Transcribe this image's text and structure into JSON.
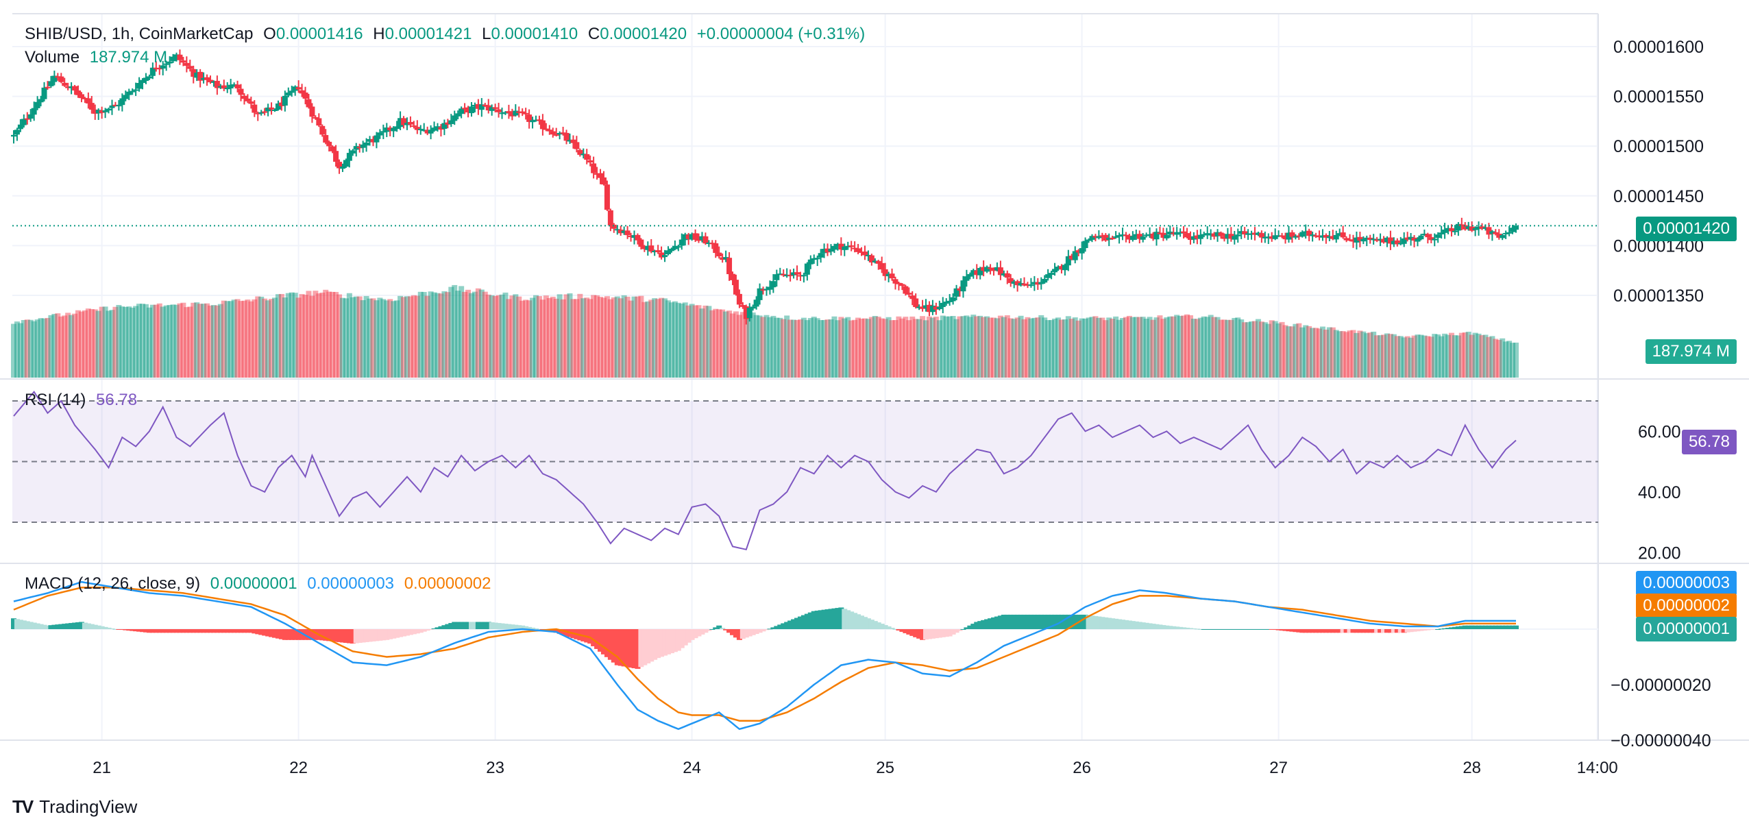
{
  "header": {
    "symbol": "SHIB/USD, 1h, CoinMarketCap",
    "o_label": "O",
    "o_value": "0.00001416",
    "h_label": "H",
    "h_value": "0.00001421",
    "l_label": "L",
    "l_value": "0.00001410",
    "c_label": "C",
    "c_value": "0.00001420",
    "change": "+0.00000004 (+0.31%)",
    "volume_label": "Volume",
    "volume_value": "187.974 M"
  },
  "rsi_legend": {
    "label": "RSI (14)",
    "value": "56.78"
  },
  "macd_legend": {
    "label": "MACD (12, 26, close, 9)",
    "hist": "0.00000001",
    "macd": "0.00000003",
    "signal": "0.00000002"
  },
  "tags": {
    "price": "0.00001420",
    "volume": "187.974 M",
    "rsi": "56.78",
    "macd": "0.00000003",
    "signal": "0.00000002",
    "hist": "0.00000001"
  },
  "branding": {
    "name": "TradingView"
  },
  "colors": {
    "up": "#089981",
    "down": "#f23645",
    "rsi": "#7e57c2",
    "macd": "#2196f3",
    "signal": "#f57c00"
  },
  "chart_data": [
    {
      "type": "candlestick",
      "title": "SHIB/USD, 1h, CoinMarketCap",
      "price_axis_ticks": [
        "0.00001600",
        "0.00001550",
        "0.00001500",
        "0.00001450",
        "0.00001400",
        "0.00001350"
      ],
      "price_ticks_numeric": [
        1600,
        1550,
        1500,
        1450,
        1400,
        1350
      ],
      "price_unit_note": "values ×1e-8 USD",
      "time_axis_ticks": [
        "21",
        "22",
        "23",
        "24",
        "25",
        "26",
        "27",
        "28",
        "14:00"
      ],
      "time_tick_bar_index": [
        26,
        84,
        142,
        200,
        257,
        315,
        373,
        430,
        467
      ],
      "anchors_close": [
        [
          0,
          1510
        ],
        [
          6,
          1540
        ],
        [
          12,
          1570
        ],
        [
          18,
          1555
        ],
        [
          24,
          1535
        ],
        [
          30,
          1540
        ],
        [
          36,
          1560
        ],
        [
          42,
          1580
        ],
        [
          48,
          1590
        ],
        [
          54,
          1570
        ],
        [
          60,
          1560
        ],
        [
          66,
          1560
        ],
        [
          72,
          1530
        ],
        [
          78,
          1540
        ],
        [
          84,
          1560
        ],
        [
          90,
          1520
        ],
        [
          96,
          1480
        ],
        [
          102,
          1500
        ],
        [
          108,
          1510
        ],
        [
          114,
          1525
        ],
        [
          120,
          1515
        ],
        [
          126,
          1520
        ],
        [
          132,
          1535
        ],
        [
          138,
          1540
        ],
        [
          144,
          1535
        ],
        [
          150,
          1530
        ],
        [
          156,
          1520
        ],
        [
          162,
          1510
        ],
        [
          168,
          1490
        ],
        [
          174,
          1460
        ],
        [
          176,
          1420
        ],
        [
          180,
          1415
        ],
        [
          186,
          1400
        ],
        [
          192,
          1390
        ],
        [
          198,
          1410
        ],
        [
          204,
          1405
        ],
        [
          210,
          1385
        ],
        [
          214,
          1340
        ],
        [
          216,
          1330
        ],
        [
          220,
          1355
        ],
        [
          226,
          1370
        ],
        [
          232,
          1370
        ],
        [
          238,
          1395
        ],
        [
          244,
          1400
        ],
        [
          250,
          1395
        ],
        [
          256,
          1375
        ],
        [
          262,
          1360
        ],
        [
          266,
          1340
        ],
        [
          270,
          1335
        ],
        [
          276,
          1345
        ],
        [
          282,
          1370
        ],
        [
          288,
          1380
        ],
        [
          292,
          1370
        ],
        [
          296,
          1360
        ],
        [
          300,
          1360
        ],
        [
          306,
          1370
        ],
        [
          312,
          1390
        ],
        [
          318,
          1410
        ],
        [
          324,
          1405
        ],
        [
          330,
          1410
        ],
        [
          336,
          1410
        ],
        [
          342,
          1412
        ],
        [
          348,
          1408
        ],
        [
          354,
          1410
        ],
        [
          360,
          1410
        ],
        [
          366,
          1412
        ],
        [
          372,
          1408
        ],
        [
          378,
          1410
        ],
        [
          384,
          1412
        ],
        [
          390,
          1410
        ],
        [
          396,
          1406
        ],
        [
          402,
          1404
        ],
        [
          408,
          1405
        ],
        [
          414,
          1408
        ],
        [
          420,
          1410
        ],
        [
          426,
          1418
        ],
        [
          432,
          1418
        ],
        [
          438,
          1408
        ],
        [
          443,
          1420
        ]
      ],
      "last": {
        "open": 1416,
        "high": 1421,
        "low": 1410,
        "close": 1420
      }
    },
    {
      "type": "bar",
      "title": "Volume",
      "anchors_million": [
        [
          0,
          300
        ],
        [
          30,
          380
        ],
        [
          60,
          400
        ],
        [
          90,
          460
        ],
        [
          110,
          420
        ],
        [
          130,
          480
        ],
        [
          150,
          430
        ],
        [
          170,
          440
        ],
        [
          190,
          420
        ],
        [
          210,
          360
        ],
        [
          230,
          320
        ],
        [
          250,
          320
        ],
        [
          270,
          320
        ],
        [
          290,
          330
        ],
        [
          310,
          320
        ],
        [
          330,
          320
        ],
        [
          350,
          330
        ],
        [
          370,
          300
        ],
        [
          390,
          260
        ],
        [
          410,
          220
        ],
        [
          430,
          240
        ],
        [
          443,
          188
        ]
      ],
      "last_value": "187.974 M"
    },
    {
      "type": "line",
      "title": "RSI (14)",
      "axis_ticks": [
        "60.00",
        "40.00",
        "20.00"
      ],
      "bands": [
        70,
        50,
        30
      ],
      "anchors": [
        [
          0,
          65
        ],
        [
          6,
          73
        ],
        [
          10,
          66
        ],
        [
          14,
          70
        ],
        [
          18,
          62
        ],
        [
          24,
          54
        ],
        [
          28,
          48
        ],
        [
          32,
          58
        ],
        [
          36,
          55
        ],
        [
          40,
          60
        ],
        [
          44,
          68
        ],
        [
          48,
          58
        ],
        [
          52,
          55
        ],
        [
          58,
          62
        ],
        [
          62,
          66
        ],
        [
          66,
          52
        ],
        [
          70,
          42
        ],
        [
          74,
          40
        ],
        [
          78,
          48
        ],
        [
          82,
          52
        ],
        [
          86,
          45
        ],
        [
          88,
          52
        ],
        [
          92,
          42
        ],
        [
          96,
          32
        ],
        [
          100,
          38
        ],
        [
          104,
          40
        ],
        [
          108,
          35
        ],
        [
          112,
          40
        ],
        [
          116,
          45
        ],
        [
          120,
          40
        ],
        [
          124,
          48
        ],
        [
          128,
          45
        ],
        [
          132,
          52
        ],
        [
          136,
          47
        ],
        [
          140,
          50
        ],
        [
          144,
          52
        ],
        [
          148,
          48
        ],
        [
          152,
          52
        ],
        [
          156,
          46
        ],
        [
          160,
          44
        ],
        [
          164,
          40
        ],
        [
          168,
          36
        ],
        [
          172,
          30
        ],
        [
          176,
          23
        ],
        [
          180,
          28
        ],
        [
          184,
          26
        ],
        [
          188,
          24
        ],
        [
          192,
          28
        ],
        [
          196,
          26
        ],
        [
          200,
          35
        ],
        [
          204,
          36
        ],
        [
          208,
          32
        ],
        [
          212,
          22
        ],
        [
          216,
          21
        ],
        [
          220,
          34
        ],
        [
          224,
          36
        ],
        [
          228,
          40
        ],
        [
          232,
          48
        ],
        [
          236,
          46
        ],
        [
          240,
          52
        ],
        [
          244,
          48
        ],
        [
          248,
          52
        ],
        [
          252,
          50
        ],
        [
          256,
          44
        ],
        [
          260,
          40
        ],
        [
          264,
          38
        ],
        [
          268,
          42
        ],
        [
          272,
          40
        ],
        [
          276,
          46
        ],
        [
          280,
          50
        ],
        [
          284,
          54
        ],
        [
          288,
          53
        ],
        [
          292,
          46
        ],
        [
          296,
          48
        ],
        [
          300,
          52
        ],
        [
          304,
          58
        ],
        [
          308,
          64
        ],
        [
          312,
          66
        ],
        [
          316,
          60
        ],
        [
          320,
          62
        ],
        [
          324,
          58
        ],
        [
          328,
          60
        ],
        [
          332,
          62
        ],
        [
          336,
          58
        ],
        [
          340,
          60
        ],
        [
          344,
          56
        ],
        [
          348,
          58
        ],
        [
          352,
          56
        ],
        [
          356,
          54
        ],
        [
          360,
          58
        ],
        [
          364,
          62
        ],
        [
          368,
          54
        ],
        [
          372,
          48
        ],
        [
          376,
          52
        ],
        [
          380,
          58
        ],
        [
          384,
          55
        ],
        [
          388,
          50
        ],
        [
          392,
          54
        ],
        [
          396,
          46
        ],
        [
          400,
          50
        ],
        [
          404,
          48
        ],
        [
          408,
          52
        ],
        [
          412,
          48
        ],
        [
          416,
          50
        ],
        [
          420,
          54
        ],
        [
          424,
          52
        ],
        [
          428,
          62
        ],
        [
          432,
          54
        ],
        [
          436,
          48
        ],
        [
          440,
          54
        ],
        [
          443,
          57
        ]
      ],
      "last_value": "56.78"
    },
    {
      "type": "line",
      "title": "MACD (12, 26, close, 9)",
      "axis_ticks": [
        "−0.00000020",
        "−0.00000040"
      ],
      "unit_note": "values ×1e-8",
      "macd_anchors": [
        [
          0,
          10
        ],
        [
          10,
          13
        ],
        [
          20,
          17
        ],
        [
          30,
          15
        ],
        [
          40,
          13
        ],
        [
          50,
          12
        ],
        [
          60,
          10
        ],
        [
          70,
          8
        ],
        [
          80,
          2
        ],
        [
          90,
          -5
        ],
        [
          100,
          -12
        ],
        [
          110,
          -13
        ],
        [
          120,
          -10
        ],
        [
          130,
          -5
        ],
        [
          140,
          -1
        ],
        [
          150,
          0
        ],
        [
          160,
          -1
        ],
        [
          170,
          -7
        ],
        [
          178,
          -20
        ],
        [
          184,
          -29
        ],
        [
          190,
          -33
        ],
        [
          196,
          -36
        ],
        [
          200,
          -34
        ],
        [
          208,
          -30
        ],
        [
          214,
          -36
        ],
        [
          220,
          -34
        ],
        [
          228,
          -28
        ],
        [
          236,
          -20
        ],
        [
          244,
          -13
        ],
        [
          252,
          -11
        ],
        [
          260,
          -12
        ],
        [
          268,
          -16
        ],
        [
          276,
          -17
        ],
        [
          284,
          -12
        ],
        [
          292,
          -6
        ],
        [
          300,
          -2
        ],
        [
          308,
          2
        ],
        [
          316,
          8
        ],
        [
          324,
          12
        ],
        [
          332,
          14
        ],
        [
          340,
          13
        ],
        [
          350,
          11
        ],
        [
          360,
          10
        ],
        [
          370,
          8
        ],
        [
          380,
          6
        ],
        [
          390,
          4
        ],
        [
          400,
          2
        ],
        [
          410,
          1
        ],
        [
          420,
          1
        ],
        [
          428,
          3
        ],
        [
          436,
          3
        ],
        [
          443,
          3
        ]
      ],
      "signal_anchors": [
        [
          0,
          7
        ],
        [
          10,
          12
        ],
        [
          20,
          15
        ],
        [
          30,
          15
        ],
        [
          40,
          14
        ],
        [
          50,
          13
        ],
        [
          60,
          11
        ],
        [
          70,
          9
        ],
        [
          80,
          5
        ],
        [
          90,
          -2
        ],
        [
          100,
          -8
        ],
        [
          110,
          -10
        ],
        [
          120,
          -9
        ],
        [
          130,
          -7
        ],
        [
          140,
          -3
        ],
        [
          150,
          -1
        ],
        [
          160,
          0
        ],
        [
          170,
          -3
        ],
        [
          178,
          -10
        ],
        [
          184,
          -18
        ],
        [
          190,
          -25
        ],
        [
          196,
          -30
        ],
        [
          200,
          -31
        ],
        [
          208,
          -31
        ],
        [
          214,
          -33
        ],
        [
          220,
          -33
        ],
        [
          228,
          -30
        ],
        [
          236,
          -25
        ],
        [
          244,
          -19
        ],
        [
          252,
          -14
        ],
        [
          260,
          -12
        ],
        [
          268,
          -13
        ],
        [
          276,
          -15
        ],
        [
          284,
          -14
        ],
        [
          292,
          -10
        ],
        [
          300,
          -6
        ],
        [
          308,
          -2
        ],
        [
          316,
          4
        ],
        [
          324,
          9
        ],
        [
          332,
          12
        ],
        [
          340,
          12
        ],
        [
          350,
          11
        ],
        [
          360,
          10
        ],
        [
          370,
          8
        ],
        [
          380,
          7
        ],
        [
          390,
          5
        ],
        [
          400,
          3
        ],
        [
          410,
          2
        ],
        [
          420,
          1
        ],
        [
          428,
          2
        ],
        [
          436,
          2
        ],
        [
          443,
          2
        ]
      ],
      "last_values": {
        "histogram": "0.00000001",
        "macd": "0.00000003",
        "signal": "0.00000002"
      }
    }
  ]
}
